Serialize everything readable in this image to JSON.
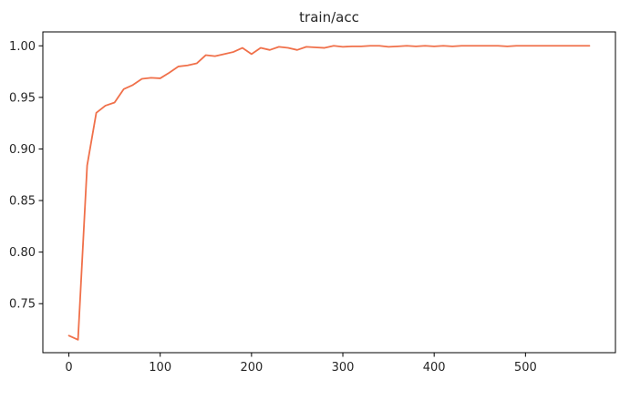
{
  "chart_data": {
    "type": "line",
    "title": "train/acc",
    "xlabel": "",
    "ylabel": "",
    "xlim": [
      -28.5,
      598.5
    ],
    "ylim": [
      0.7025,
      1.0135
    ],
    "grid": false,
    "legend": "none",
    "x_ticks": [
      0,
      100,
      200,
      300,
      400,
      500
    ],
    "x_tick_labels": [
      "0",
      "100",
      "200",
      "300",
      "400",
      "500"
    ],
    "y_ticks": [
      0.75,
      0.8,
      0.85,
      0.9,
      0.95,
      1.0
    ],
    "y_tick_labels": [
      "0.75",
      "0.80",
      "0.85",
      "0.90",
      "0.95",
      "1.00"
    ],
    "series": [
      {
        "name": "",
        "color": "#f0704a",
        "x": [
          0,
          10,
          20,
          30,
          40,
          50,
          60,
          70,
          80,
          90,
          100,
          110,
          120,
          130,
          140,
          150,
          160,
          170,
          180,
          190,
          200,
          210,
          220,
          230,
          240,
          250,
          260,
          270,
          280,
          290,
          300,
          310,
          320,
          330,
          340,
          350,
          360,
          370,
          380,
          390,
          400,
          410,
          420,
          430,
          440,
          450,
          460,
          470,
          480,
          490,
          500,
          510,
          520,
          530,
          540,
          550,
          560,
          570
        ],
        "y": [
          0.719,
          0.715,
          0.884,
          0.935,
          0.942,
          0.945,
          0.958,
          0.962,
          0.968,
          0.969,
          0.9685,
          0.974,
          0.98,
          0.981,
          0.983,
          0.991,
          0.99,
          0.992,
          0.994,
          0.998,
          0.992,
          0.998,
          0.996,
          0.999,
          0.998,
          0.996,
          0.999,
          0.9985,
          0.998,
          1.0,
          0.999,
          0.9995,
          0.9995,
          1.0,
          1.0,
          0.999,
          0.9995,
          1.0,
          0.9995,
          1.0,
          0.9995,
          1.0,
          0.9995,
          1.0,
          1.0,
          1.0,
          1.0,
          1.0,
          0.9995,
          1.0,
          1.0,
          1.0,
          1.0,
          1.0,
          1.0,
          1.0,
          1.0,
          1.0
        ]
      }
    ]
  }
}
